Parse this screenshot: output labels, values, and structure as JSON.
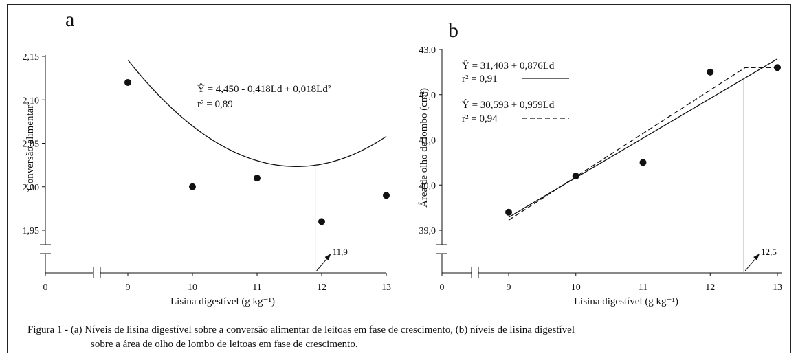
{
  "chart_data": [
    {
      "type": "scatter",
      "panel_label": "a",
      "ylabel": "Conversão alimentar",
      "xlabel": "Lisina digestível (g kg⁻¹)",
      "x_ticks": [
        "0",
        "9",
        "10",
        "11",
        "12",
        "13"
      ],
      "y_ticks": [
        "1,95",
        "2,00",
        "2,05",
        "2,10",
        "2,15"
      ],
      "ylim": [
        1.95,
        2.15
      ],
      "xlim": [
        9,
        13
      ],
      "points": [
        {
          "x": 9,
          "y": 2.12
        },
        {
          "x": 10,
          "y": 2.0
        },
        {
          "x": 11,
          "y": 2.01
        },
        {
          "x": 12,
          "y": 1.96
        },
        {
          "x": 13,
          "y": 1.99
        }
      ],
      "fit": {
        "type": "quadratic",
        "a": 4.45,
        "b": -0.418,
        "c": 0.018
      },
      "equation": "Ŷ = 4,450 - 0,418Ld + 0,018Ld²",
      "r2": "r² = 0,89",
      "optimum_x": 11.9,
      "optimum_label": "11,9"
    },
    {
      "type": "scatter",
      "panel_label": "b",
      "ylabel": "Área de olho de lombo (cm²)",
      "xlabel": "Lisina digestível (g kg⁻¹)",
      "x_ticks": [
        "0",
        "9",
        "10",
        "11",
        "12",
        "13"
      ],
      "y_ticks": [
        "39,0",
        "40,0",
        "41,0",
        "42,0",
        "43,0"
      ],
      "ylim": [
        39.0,
        43.0
      ],
      "xlim": [
        9,
        13
      ],
      "points": [
        {
          "x": 9,
          "y": 39.4
        },
        {
          "x": 10,
          "y": 40.2
        },
        {
          "x": 11,
          "y": 40.5
        },
        {
          "x": 12,
          "y": 42.5
        },
        {
          "x": 13,
          "y": 42.6
        }
      ],
      "fits": [
        {
          "style": "solid",
          "intercept": 31.403,
          "slope": 0.876,
          "equation": "Ŷ = 31,403 + 0,876Ld",
          "r2": "r² = 0,91"
        },
        {
          "style": "dashed",
          "intercept": 30.593,
          "slope": 0.959,
          "plateau": 42.6,
          "equation": "Ŷ = 30,593 + 0,959Ld",
          "r2": "r² = 0,94"
        }
      ],
      "optimum_x": 12.5,
      "optimum_label": "12,5"
    }
  ],
  "caption": {
    "line1": "Figura 1 - (a) Níveis de lisina digestível sobre a conversão alimentar de leitoas em fase de crescimento, (b) níveis de lisina digestível",
    "line2": "sobre a área de olho de lombo de leitoas em fase de crescimento."
  }
}
